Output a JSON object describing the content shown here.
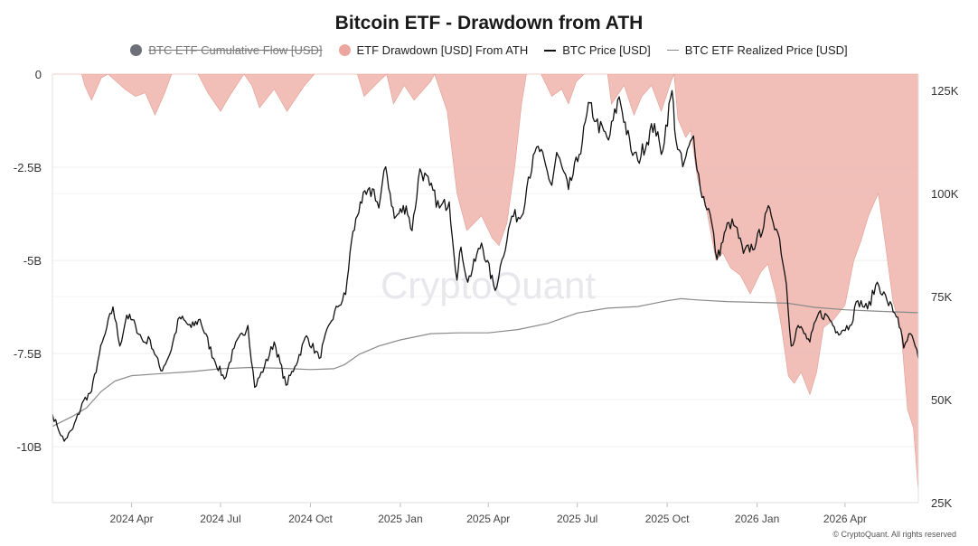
{
  "chart_data": {
    "type": "area",
    "title": "Bitcoin ETF - Drawdown from ATH",
    "watermark": "CryptoQuant",
    "footer": "© CryptoQuant. All rights reserved",
    "x_ticks": [
      "2024 Apr",
      "2024 Jul",
      "2024 Oct",
      "2025 Jan",
      "2025 Apr",
      "2025 Jul",
      "2025 Oct",
      "2026 Jan",
      "2026 Apr"
    ],
    "x_range": [
      "2024-01-11",
      "2026-06-15"
    ],
    "y_left": {
      "ticks": [
        "0",
        "-2.5B",
        "-5B",
        "-7.5B",
        "-10B"
      ],
      "range": [
        -11.5,
        0
      ],
      "unit": "B USD"
    },
    "y_right": {
      "ticks": [
        "125K",
        "100K",
        "75K",
        "50K",
        "25K"
      ],
      "range": [
        25000,
        129000
      ],
      "unit": "USD"
    },
    "grid": true,
    "legend_position": "top-center",
    "series": [
      {
        "name": "BTC ETF Cumulative Flow [USD]",
        "color": "#6e7079",
        "hidden": true
      },
      {
        "name": "ETF Drawdown [USD] From ATH",
        "color": "#eba79f",
        "axis": "left",
        "points": [
          [
            "2024-01-11",
            0
          ],
          [
            "2024-02-10",
            0
          ],
          [
            "2024-02-13",
            -0.3
          ],
          [
            "2024-02-20",
            -0.7
          ],
          [
            "2024-03-01",
            -0.1
          ],
          [
            "2024-03-08",
            0
          ],
          [
            "2024-03-25",
            -0.4
          ],
          [
            "2024-04-05",
            -0.6
          ],
          [
            "2024-04-15",
            -0.5
          ],
          [
            "2024-04-25",
            -1.1
          ],
          [
            "2024-05-05",
            -0.5
          ],
          [
            "2024-05-12",
            0
          ],
          [
            "2024-06-08",
            0
          ],
          [
            "2024-06-18",
            -0.5
          ],
          [
            "2024-07-01",
            -1.0
          ],
          [
            "2024-07-10",
            -0.6
          ],
          [
            "2024-07-25",
            0
          ],
          [
            "2024-08-02",
            -0.3
          ],
          [
            "2024-08-10",
            -0.9
          ],
          [
            "2024-08-25",
            -0.4
          ],
          [
            "2024-09-07",
            -1.0
          ],
          [
            "2024-09-25",
            -0.3
          ],
          [
            "2024-10-05",
            0
          ],
          [
            "2024-11-18",
            0
          ],
          [
            "2024-11-25",
            -0.6
          ],
          [
            "2024-12-10",
            -0.2
          ],
          [
            "2024-12-18",
            0
          ],
          [
            "2024-12-25",
            -0.8
          ],
          [
            "2025-01-05",
            -0.3
          ],
          [
            "2025-01-15",
            -0.7
          ],
          [
            "2025-02-01",
            -0.2
          ],
          [
            "2025-02-05",
            0
          ],
          [
            "2025-02-18",
            -1.0
          ],
          [
            "2025-02-28",
            -3.2
          ],
          [
            "2025-03-10",
            -4.2
          ],
          [
            "2025-03-25",
            -3.8
          ],
          [
            "2025-04-05",
            -4.4
          ],
          [
            "2025-04-12",
            -4.6
          ],
          [
            "2025-04-20",
            -4.0
          ],
          [
            "2025-04-28",
            -2.5
          ],
          [
            "2025-05-05",
            -0.8
          ],
          [
            "2025-05-10",
            0
          ],
          [
            "2025-05-25",
            0
          ],
          [
            "2025-06-05",
            -0.6
          ],
          [
            "2025-06-15",
            -0.4
          ],
          [
            "2025-06-22",
            -0.8
          ],
          [
            "2025-06-30",
            -0.2
          ],
          [
            "2025-07-08",
            0
          ],
          [
            "2025-08-01",
            0
          ],
          [
            "2025-08-05",
            -0.8
          ],
          [
            "2025-08-18",
            -0.3
          ],
          [
            "2025-08-28",
            -1.1
          ],
          [
            "2025-09-05",
            -0.6
          ],
          [
            "2025-09-15",
            -0.3
          ],
          [
            "2025-09-25",
            -1.0
          ],
          [
            "2025-10-05",
            -0.2
          ],
          [
            "2025-10-08",
            0
          ],
          [
            "2025-10-12",
            -1.2
          ],
          [
            "2025-10-20",
            -1.7
          ],
          [
            "2025-10-25",
            -1.5
          ],
          [
            "2025-11-01",
            -2.8
          ],
          [
            "2025-11-10",
            -3.6
          ],
          [
            "2025-11-20",
            -5.0
          ],
          [
            "2025-11-27",
            -4.8
          ],
          [
            "2025-12-05",
            -5.2
          ],
          [
            "2025-12-15",
            -5.4
          ],
          [
            "2025-12-25",
            -5.9
          ],
          [
            "2026-01-05",
            -5.3
          ],
          [
            "2026-01-12",
            -5.1
          ],
          [
            "2026-01-20",
            -5.9
          ],
          [
            "2026-01-26",
            -6.8
          ],
          [
            "2026-02-02",
            -8.1
          ],
          [
            "2026-02-08",
            -8.3
          ],
          [
            "2026-02-15",
            -8.0
          ],
          [
            "2026-02-24",
            -8.6
          ],
          [
            "2026-03-03",
            -8.0
          ],
          [
            "2026-03-10",
            -6.8
          ],
          [
            "2026-03-20",
            -6.6
          ],
          [
            "2026-04-01",
            -6.2
          ],
          [
            "2026-04-10",
            -5.0
          ],
          [
            "2026-04-17",
            -4.5
          ],
          [
            "2026-04-25",
            -3.8
          ],
          [
            "2026-05-05",
            -3.2
          ],
          [
            "2026-05-12",
            -4.5
          ],
          [
            "2026-05-20",
            -6.1
          ],
          [
            "2026-05-28",
            -6.8
          ],
          [
            "2026-06-04",
            -9.0
          ],
          [
            "2026-06-10",
            -9.5
          ],
          [
            "2026-06-15",
            -11.2
          ]
        ]
      },
      {
        "name": "BTC Price [USD]",
        "color": "#111111",
        "axis": "right",
        "points": [
          [
            "2024-01-11",
            46500
          ],
          [
            "2024-01-16",
            43500
          ],
          [
            "2024-01-23",
            39900
          ],
          [
            "2024-02-01",
            43000
          ],
          [
            "2024-02-12",
            49800
          ],
          [
            "2024-02-20",
            52000
          ],
          [
            "2024-02-28",
            61000
          ],
          [
            "2024-03-05",
            66000
          ],
          [
            "2024-03-13",
            72500
          ],
          [
            "2024-03-20",
            63000
          ],
          [
            "2024-03-27",
            70500
          ],
          [
            "2024-04-05",
            68000
          ],
          [
            "2024-04-13",
            64000
          ],
          [
            "2024-04-20",
            64500
          ],
          [
            "2024-05-01",
            57000
          ],
          [
            "2024-05-10",
            61000
          ],
          [
            "2024-05-20",
            70000
          ],
          [
            "2024-06-01",
            67500
          ],
          [
            "2024-06-10",
            69500
          ],
          [
            "2024-06-24",
            60000
          ],
          [
            "2024-07-05",
            55000
          ],
          [
            "2024-07-15",
            62500
          ],
          [
            "2024-07-29",
            68000
          ],
          [
            "2024-08-05",
            53000
          ],
          [
            "2024-08-15",
            58000
          ],
          [
            "2024-08-25",
            64000
          ],
          [
            "2024-09-06",
            53500
          ],
          [
            "2024-09-15",
            58000
          ],
          [
            "2024-09-27",
            65500
          ],
          [
            "2024-10-10",
            60000
          ],
          [
            "2024-10-21",
            68500
          ],
          [
            "2024-10-29",
            72500
          ],
          [
            "2024-11-06",
            75500
          ],
          [
            "2024-11-12",
            88500
          ],
          [
            "2024-11-21",
            98000
          ],
          [
            "2024-12-05",
            101000
          ],
          [
            "2024-12-10",
            96500
          ],
          [
            "2024-12-17",
            106500
          ],
          [
            "2024-12-26",
            94000
          ],
          [
            "2025-01-07",
            97000
          ],
          [
            "2025-01-13",
            91000
          ],
          [
            "2025-01-21",
            106000
          ],
          [
            "2025-01-31",
            102000
          ],
          [
            "2025-02-10",
            96500
          ],
          [
            "2025-02-20",
            98000
          ],
          [
            "2025-02-28",
            79000
          ],
          [
            "2025-03-04",
            87000
          ],
          [
            "2025-03-11",
            78500
          ],
          [
            "2025-03-25",
            88000
          ],
          [
            "2025-04-08",
            76500
          ],
          [
            "2025-04-15",
            84000
          ],
          [
            "2025-04-25",
            94500
          ],
          [
            "2025-05-05",
            94500
          ],
          [
            "2025-05-12",
            104000
          ],
          [
            "2025-05-22",
            111500
          ],
          [
            "2025-06-05",
            102000
          ],
          [
            "2025-06-10",
            110000
          ],
          [
            "2025-06-22",
            101000
          ],
          [
            "2025-07-03",
            109500
          ],
          [
            "2025-07-14",
            122000
          ],
          [
            "2025-07-20",
            117500
          ],
          [
            "2025-08-02",
            113000
          ],
          [
            "2025-08-13",
            123500
          ],
          [
            "2025-08-25",
            110500
          ],
          [
            "2025-09-01",
            108000
          ],
          [
            "2025-09-18",
            117000
          ],
          [
            "2025-09-25",
            109500
          ],
          [
            "2025-10-06",
            125000
          ],
          [
            "2025-10-10",
            113000
          ],
          [
            "2025-10-17",
            106500
          ],
          [
            "2025-10-28",
            114000
          ],
          [
            "2025-11-04",
            101000
          ],
          [
            "2025-11-14",
            95000
          ],
          [
            "2025-11-21",
            84000
          ],
          [
            "2025-12-03",
            93000
          ],
          [
            "2025-12-10",
            92000
          ],
          [
            "2025-12-18",
            85500
          ],
          [
            "2025-12-31",
            88000
          ],
          [
            "2026-01-14",
            96500
          ],
          [
            "2026-01-24",
            89000
          ],
          [
            "2026-01-31",
            78000
          ],
          [
            "2026-02-05",
            63000
          ],
          [
            "2026-02-12",
            68000
          ],
          [
            "2026-02-24",
            64000
          ],
          [
            "2026-03-05",
            71000
          ],
          [
            "2026-03-15",
            70000
          ],
          [
            "2026-03-24",
            66500
          ],
          [
            "2026-04-06",
            68000
          ],
          [
            "2026-04-14",
            74000
          ],
          [
            "2026-04-24",
            72000
          ],
          [
            "2026-05-04",
            78500
          ],
          [
            "2026-05-14",
            74000
          ],
          [
            "2026-05-25",
            70000
          ],
          [
            "2026-05-31",
            62500
          ],
          [
            "2026-06-07",
            66000
          ],
          [
            "2026-06-15",
            60000
          ]
        ]
      },
      {
        "name": "BTC ETF Realized Price [USD]",
        "color": "#8a8a8a",
        "axis": "right",
        "points": [
          [
            "2024-01-11",
            43500
          ],
          [
            "2024-02-01",
            46000
          ],
          [
            "2024-02-15",
            48000
          ],
          [
            "2024-03-01",
            52000
          ],
          [
            "2024-03-15",
            54500
          ],
          [
            "2024-04-01",
            55800
          ],
          [
            "2024-05-01",
            56300
          ],
          [
            "2024-06-01",
            56800
          ],
          [
            "2024-07-01",
            57500
          ],
          [
            "2024-08-01",
            57800
          ],
          [
            "2024-09-01",
            57600
          ],
          [
            "2024-10-01",
            57300
          ],
          [
            "2024-10-25",
            57500
          ],
          [
            "2024-11-05",
            58500
          ],
          [
            "2024-11-20",
            61000
          ],
          [
            "2024-12-10",
            63000
          ],
          [
            "2025-01-01",
            64500
          ],
          [
            "2025-02-01",
            66000
          ],
          [
            "2025-03-01",
            66200
          ],
          [
            "2025-04-01",
            66200
          ],
          [
            "2025-05-01",
            67000
          ],
          [
            "2025-06-01",
            68500
          ],
          [
            "2025-07-01",
            71000
          ],
          [
            "2025-08-01",
            72200
          ],
          [
            "2025-09-01",
            72600
          ],
          [
            "2025-10-01",
            74000
          ],
          [
            "2025-10-15",
            74500
          ],
          [
            "2025-11-01",
            74200
          ],
          [
            "2025-12-01",
            73800
          ],
          [
            "2026-01-01",
            73600
          ],
          [
            "2026-02-01",
            73400
          ],
          [
            "2026-03-01",
            72400
          ],
          [
            "2026-04-01",
            71800
          ],
          [
            "2026-05-01",
            71500
          ],
          [
            "2026-06-01",
            71200
          ],
          [
            "2026-06-15",
            71100
          ]
        ]
      }
    ]
  }
}
